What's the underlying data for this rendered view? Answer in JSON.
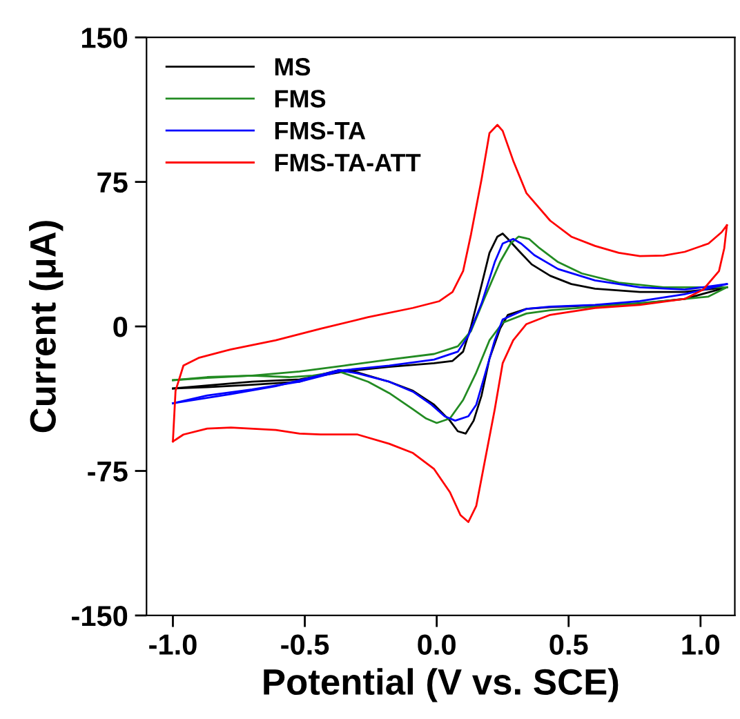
{
  "chart_data": {
    "type": "line",
    "xlabel": "Potential (V vs. SCE)",
    "ylabel": "Current (μA)",
    "xlim": [
      -1.1,
      1.13
    ],
    "ylim": [
      -150,
      150
    ],
    "xticks": [
      {
        "value": -1.0,
        "label": "-1.0"
      },
      {
        "value": -0.5,
        "label": "-0.5"
      },
      {
        "value": 0.0,
        "label": "0.0"
      },
      {
        "value": 0.5,
        "label": "0.5"
      },
      {
        "value": 1.0,
        "label": "1.0"
      }
    ],
    "yticks": [
      -150,
      -75,
      0,
      75,
      150
    ],
    "grid": false,
    "legend": "top left",
    "marker": "none",
    "line_style": "solid",
    "series": [
      {
        "name": "MS",
        "color": "#000000",
        "x": [
          -1.0,
          -0.87,
          -0.7,
          -0.52,
          -0.35,
          -0.18,
          -0.01,
          0.06,
          0.1,
          0.13,
          0.17,
          0.2,
          0.23,
          0.25,
          0.27,
          0.31,
          0.36,
          0.43,
          0.51,
          0.6,
          0.77,
          0.94,
          1.1
        ],
        "values": [
          -32.2,
          -30.6,
          -28.7,
          -27.5,
          -23.4,
          -21.0,
          -19.1,
          -17.9,
          -13.1,
          0,
          21.5,
          38.2,
          46.6,
          48.2,
          45.4,
          39.4,
          32.2,
          26.3,
          22.0,
          19.6,
          17.9,
          17.9,
          20.3
        ]
      },
      {
        "color": "#000000",
        "x": [
          1.1,
          0.94,
          0.77,
          0.6,
          0.43,
          0.34,
          0.27,
          0.24,
          0.2,
          0.17,
          0.14,
          0.11,
          0.08,
          0.05,
          -0.01,
          -0.09,
          -0.18,
          -0.3,
          -0.37,
          -0.44,
          -0.52,
          -0.7,
          -0.87,
          -1.0
        ],
        "values": [
          20.3,
          14.3,
          11.9,
          11.0,
          10.0,
          9.1,
          6.0,
          -1.2,
          -16.7,
          -35.8,
          -48.9,
          -55.6,
          -54.4,
          -48.9,
          -40.6,
          -33.4,
          -28.7,
          -23.9,
          -22.7,
          -25.1,
          -28.7,
          -30.3,
          -31.5,
          -32.2
        ]
      },
      {
        "name": "FMS",
        "color": "#228b22",
        "x": [
          -1.0,
          -0.87,
          -0.7,
          -0.52,
          -0.35,
          -0.18,
          -0.01,
          0.08,
          0.13,
          0.18,
          0.24,
          0.28,
          0.31,
          0.35,
          0.39,
          0.46,
          0.55,
          0.69,
          0.86,
          1.1
        ],
        "values": [
          -27.9,
          -26.3,
          -25.5,
          -23.4,
          -20.3,
          -17.2,
          -14.3,
          -10.3,
          -2.4,
          14.3,
          33.4,
          43.0,
          46.6,
          45.4,
          40.6,
          33.4,
          27.5,
          22.7,
          20.3,
          20.3
        ]
      },
      {
        "color": "#228b22",
        "x": [
          1.1,
          1.03,
          0.86,
          0.6,
          0.43,
          0.34,
          0.25,
          0.2,
          0.15,
          0.1,
          0.05,
          0.0,
          -0.04,
          -0.09,
          -0.18,
          -0.26,
          -0.37,
          -0.47,
          -0.56,
          -0.7,
          -0.87,
          -1.0
        ],
        "values": [
          20.3,
          15.5,
          13.1,
          10.3,
          8.4,
          6.7,
          1.9,
          -7.2,
          -23.9,
          -38.2,
          -47.8,
          -50.1,
          -47.8,
          -43.0,
          -34.6,
          -28.7,
          -23.4,
          -25.5,
          -26.3,
          -25.5,
          -26.7,
          -27.9
        ]
      },
      {
        "name": "FMS-TA",
        "color": "#0000ff",
        "x": [
          -1.0,
          -0.87,
          -0.7,
          -0.52,
          -0.35,
          -0.18,
          -0.01,
          0.08,
          0.12,
          0.17,
          0.22,
          0.25,
          0.29,
          0.32,
          0.37,
          0.46,
          0.6,
          0.77,
          0.94,
          1.1
        ],
        "values": [
          -39.9,
          -35.8,
          -32.7,
          -28.7,
          -22.7,
          -20.3,
          -17.2,
          -13.1,
          -4.8,
          11.9,
          33.4,
          43.0,
          45.4,
          43.0,
          37.0,
          29.8,
          23.9,
          20.3,
          19.1,
          22.0
        ]
      },
      {
        "color": "#0000ff",
        "x": [
          1.1,
          0.94,
          0.77,
          0.6,
          0.43,
          0.34,
          0.25,
          0.22,
          0.18,
          0.15,
          0.12,
          0.07,
          0.03,
          -0.02,
          -0.09,
          -0.18,
          -0.3,
          -0.37,
          -0.47,
          -0.61,
          -0.78,
          -1.0
        ],
        "values": [
          22.0,
          16.7,
          13.1,
          11.2,
          10.3,
          9.1,
          3.6,
          -7.2,
          -26.3,
          -40.6,
          -46.6,
          -48.9,
          -46.6,
          -40.6,
          -33.9,
          -28.7,
          -24.4,
          -22.7,
          -26.3,
          -31.0,
          -35.1,
          -39.9
        ]
      },
      {
        "name": "FMS-TA-ATT",
        "color": "#ff0000",
        "x": [
          -1.0,
          -0.99,
          -0.96,
          -0.9,
          -0.78,
          -0.61,
          -0.44,
          -0.26,
          -0.09,
          0.01,
          0.06,
          0.1,
          0.13,
          0.17,
          0.2,
          0.23,
          0.25,
          0.29,
          0.34,
          0.43,
          0.51,
          0.6,
          0.69,
          0.77,
          0.86,
          0.94,
          1.03,
          1.08,
          1.1
        ],
        "values": [
          -59.7,
          -33.4,
          -20.3,
          -16.2,
          -11.9,
          -7.2,
          -1.2,
          4.8,
          9.6,
          13.1,
          17.9,
          28.7,
          47.8,
          76.4,
          100.3,
          104.6,
          101.5,
          86.0,
          69.2,
          54.9,
          46.6,
          41.8,
          38.2,
          36.5,
          36.8,
          38.7,
          43.0,
          48.9,
          52.5
        ]
      },
      {
        "color": "#ff0000",
        "x": [
          1.1,
          1.09,
          1.07,
          1.01,
          0.94,
          0.77,
          0.6,
          0.43,
          0.34,
          0.29,
          0.25,
          0.22,
          0.18,
          0.15,
          0.12,
          0.09,
          0.05,
          -0.01,
          -0.09,
          -0.18,
          -0.3,
          -0.44,
          -0.52,
          -0.61,
          -0.78,
          -0.87,
          -0.96,
          -1.0
        ],
        "values": [
          52.5,
          40.6,
          28.7,
          19.1,
          14.3,
          11.2,
          9.6,
          6.0,
          1.2,
          -7.2,
          -19.1,
          -43.0,
          -71.6,
          -93.1,
          -101.5,
          -97.9,
          -86.0,
          -74.0,
          -65.7,
          -60.9,
          -56.1,
          -56.1,
          -55.6,
          -53.7,
          -52.5,
          -53.0,
          -56.1,
          -59.7
        ]
      }
    ]
  }
}
